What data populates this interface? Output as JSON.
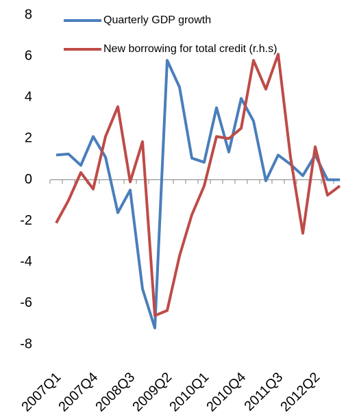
{
  "chart_data": {
    "type": "line",
    "categories": [
      "2007Q1",
      null,
      null,
      "2007Q4",
      null,
      null,
      "2008Q3",
      null,
      null,
      "2009Q2",
      null,
      null,
      "2010Q1",
      null,
      null,
      "2010Q4",
      null,
      null,
      "2011Q3",
      null,
      null,
      "2012Q2",
      null,
      null
    ],
    "series": [
      {
        "name": "Quarterly GDP growth",
        "color": "#4a7ebb",
        "values": [
          1.2,
          1.25,
          0.7,
          2.1,
          1.1,
          -1.6,
          -0.5,
          -5.3,
          -7.2,
          5.8,
          4.5,
          1.05,
          0.85,
          3.5,
          1.35,
          3.95,
          2.85,
          -0.05,
          1.2,
          0.75,
          0.2,
          1.2,
          0.0,
          0.0
        ]
      },
      {
        "name": "New borrowing for total credit (r.h.s)",
        "color": "#be4b48",
        "values": [
          -2.1,
          -1.0,
          0.35,
          -0.45,
          2.1,
          3.55,
          -0.1,
          1.85,
          -6.6,
          -6.35,
          -3.7,
          -1.7,
          -0.3,
          2.1,
          2.0,
          2.5,
          5.8,
          4.4,
          6.1,
          1.1,
          -2.6,
          1.6,
          -0.75,
          -0.3
        ]
      }
    ],
    "ylim": [
      -8,
      8
    ],
    "yticks": [
      -8,
      -6,
      -4,
      -2,
      0,
      2,
      4,
      6,
      8
    ]
  }
}
